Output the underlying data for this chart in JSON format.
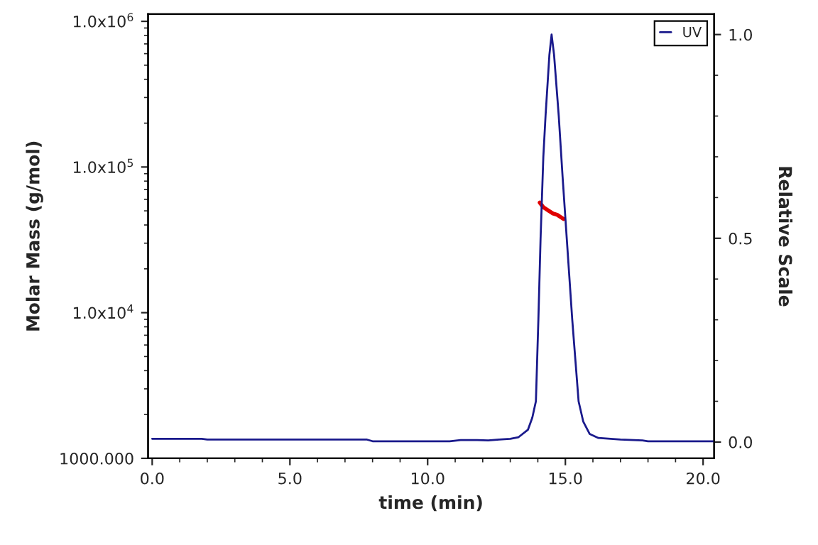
{
  "chart_data": {
    "type": "line",
    "xlabel": "time (min)",
    "ylabel": "Molar Mass (g/mol)",
    "y2label": "Relative Scale",
    "log": "y",
    "grid": false,
    "legend": "top right",
    "marker": "none",
    "line_style": "solid",
    "xlim": [
      -0.15,
      20.4
    ],
    "xticks": [
      {
        "value": 0,
        "label": "0.0"
      },
      {
        "value": 5,
        "label": "5.0"
      },
      {
        "value": 10,
        "label": "10.0"
      },
      {
        "value": 15,
        "label": "15.0"
      },
      {
        "value": 20,
        "label": "20.0"
      }
    ],
    "ylim": [
      1000,
      1120000
    ],
    "yticks": [
      {
        "value": 1000,
        "label": "1000.000"
      },
      {
        "value": 10000,
        "label": "1.0x10$^{4}$"
      },
      {
        "value": 100000,
        "label": "1.0x10$^{5}$"
      },
      {
        "value": 1000000,
        "label": "1.0x10$^{6}$"
      }
    ],
    "y2lim": [
      -0.04,
      1.05
    ],
    "y2ticks": [
      {
        "value": 0,
        "label": "0.0"
      },
      {
        "value": 0.5,
        "label": "0.5"
      },
      {
        "value": 1,
        "label": "1.0"
      }
    ],
    "series": [
      {
        "name": "UV",
        "color": "#1a1a8c",
        "axis": "y2",
        "x": [
          0,
          1.8,
          2,
          7.8,
          8,
          10.8,
          11.2,
          11.8,
          12.2,
          12.6,
          13.0,
          13.3,
          13.64,
          13.8,
          13.93,
          14.02,
          14.1,
          14.2,
          14.28,
          14.42,
          14.5,
          14.59,
          14.76,
          14.9,
          15.05,
          15.25,
          15.48,
          15.65,
          15.88,
          16.2,
          17,
          17.8,
          18,
          20.4
        ],
        "values": [
          0.008,
          0.008,
          0.006,
          0.006,
          0.002,
          0.002,
          0.005,
          0.005,
          0.004,
          0.006,
          0.008,
          0.012,
          0.03,
          0.06,
          0.1,
          0.3,
          0.5,
          0.7,
          0.8,
          0.95,
          1.0,
          0.95,
          0.8,
          0.65,
          0.5,
          0.3,
          0.1,
          0.05,
          0.02,
          0.01,
          0.006,
          0.004,
          0.002,
          0.002
        ]
      },
      {
        "color": "#e00000",
        "x": [
          14.07,
          14.2,
          14.4,
          14.55,
          14.7,
          14.93
        ],
        "values": [
          57000,
          53000,
          50000,
          48000,
          47000,
          44000
        ]
      }
    ]
  }
}
